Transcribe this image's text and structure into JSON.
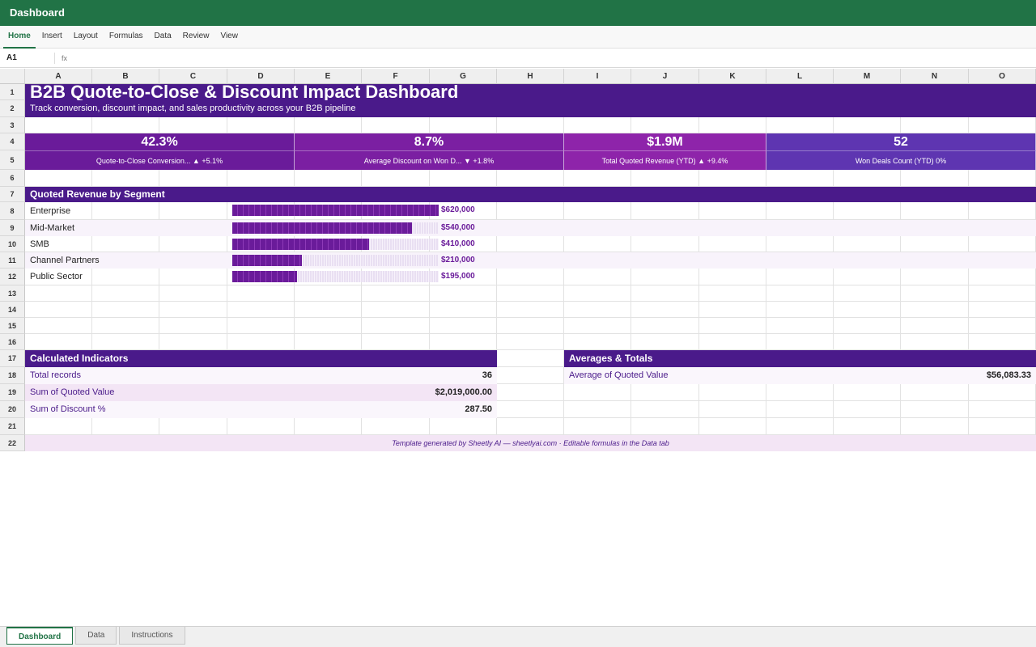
{
  "window": {
    "title": "Dashboard"
  },
  "menu": [
    "Home",
    "Insert",
    "Layout",
    "Formulas",
    "Data",
    "Review",
    "View"
  ],
  "formula_bar": {
    "cell_ref": "A1",
    "fx_label": "fx",
    "value": ""
  },
  "columns": [
    "A",
    "B",
    "C",
    "D",
    "E",
    "F",
    "G",
    "H",
    "I",
    "J",
    "K",
    "L",
    "M",
    "N",
    "O"
  ],
  "rows": [
    "1",
    "2",
    "3",
    "4",
    "5",
    "6",
    "7",
    "8",
    "9",
    "10",
    "11",
    "12",
    "13",
    "14",
    "15",
    "16",
    "17",
    "18",
    "19",
    "20",
    "21",
    "22"
  ],
  "dashboard": {
    "title": "B2B Quote-to-Close & Discount Impact Dashboard",
    "subtitle": "Track conversion, discount impact, and sales productivity across your B2B pipeline",
    "kpis": [
      {
        "value": "42.3%",
        "label": "Quote-to-Close Conversion... ▲ +5.1%",
        "color": "#6a1b9a"
      },
      {
        "value": "8.7%",
        "label": "Average Discount on Won D... ▼ +1.8%",
        "color": "#7b1fa2"
      },
      {
        "value": "$1.9M",
        "label": "Total Quoted Revenue (YTD) ▲ +9.4%",
        "color": "#8e24aa"
      },
      {
        "value": "52",
        "label": "Won Deals Count (YTD) 0%",
        "color": "#5e35b1"
      }
    ],
    "segment_section_title": "Quoted Revenue by Segment",
    "segments": [
      {
        "label": "Enterprise",
        "value": 620000,
        "display": "$620,000"
      },
      {
        "label": "Mid-Market",
        "value": 540000,
        "display": "$540,000"
      },
      {
        "label": "SMB",
        "value": 410000,
        "display": "$410,000"
      },
      {
        "label": "Channel Partners",
        "value": 210000,
        "display": "$210,000"
      },
      {
        "label": "Public Sector",
        "value": 195000,
        "display": "$195,000"
      }
    ],
    "calculated": {
      "title": "Calculated Indicators",
      "items": [
        {
          "label": "Total records",
          "value": "36"
        },
        {
          "label": "Sum of Quoted Value",
          "value": "$2,019,000.00"
        },
        {
          "label": "Sum of Discount %",
          "value": "287.50"
        }
      ]
    },
    "averages": {
      "title": "Averages & Totals",
      "items": [
        {
          "label": "Average of Quoted Value",
          "value": "$56,083.33"
        }
      ]
    },
    "footer": "Template generated by Sheetly AI — sheetlyai.com · Editable formulas in the Data tab"
  },
  "sheet_tabs": [
    {
      "label": "Dashboard",
      "active": true
    },
    {
      "label": "Data",
      "active": false
    },
    {
      "label": "Instructions",
      "active": false
    }
  ],
  "colors": {
    "brand_green": "#217346",
    "primary_purple": "#4a1a8a",
    "bar_purple": "#6a1b9a"
  }
}
